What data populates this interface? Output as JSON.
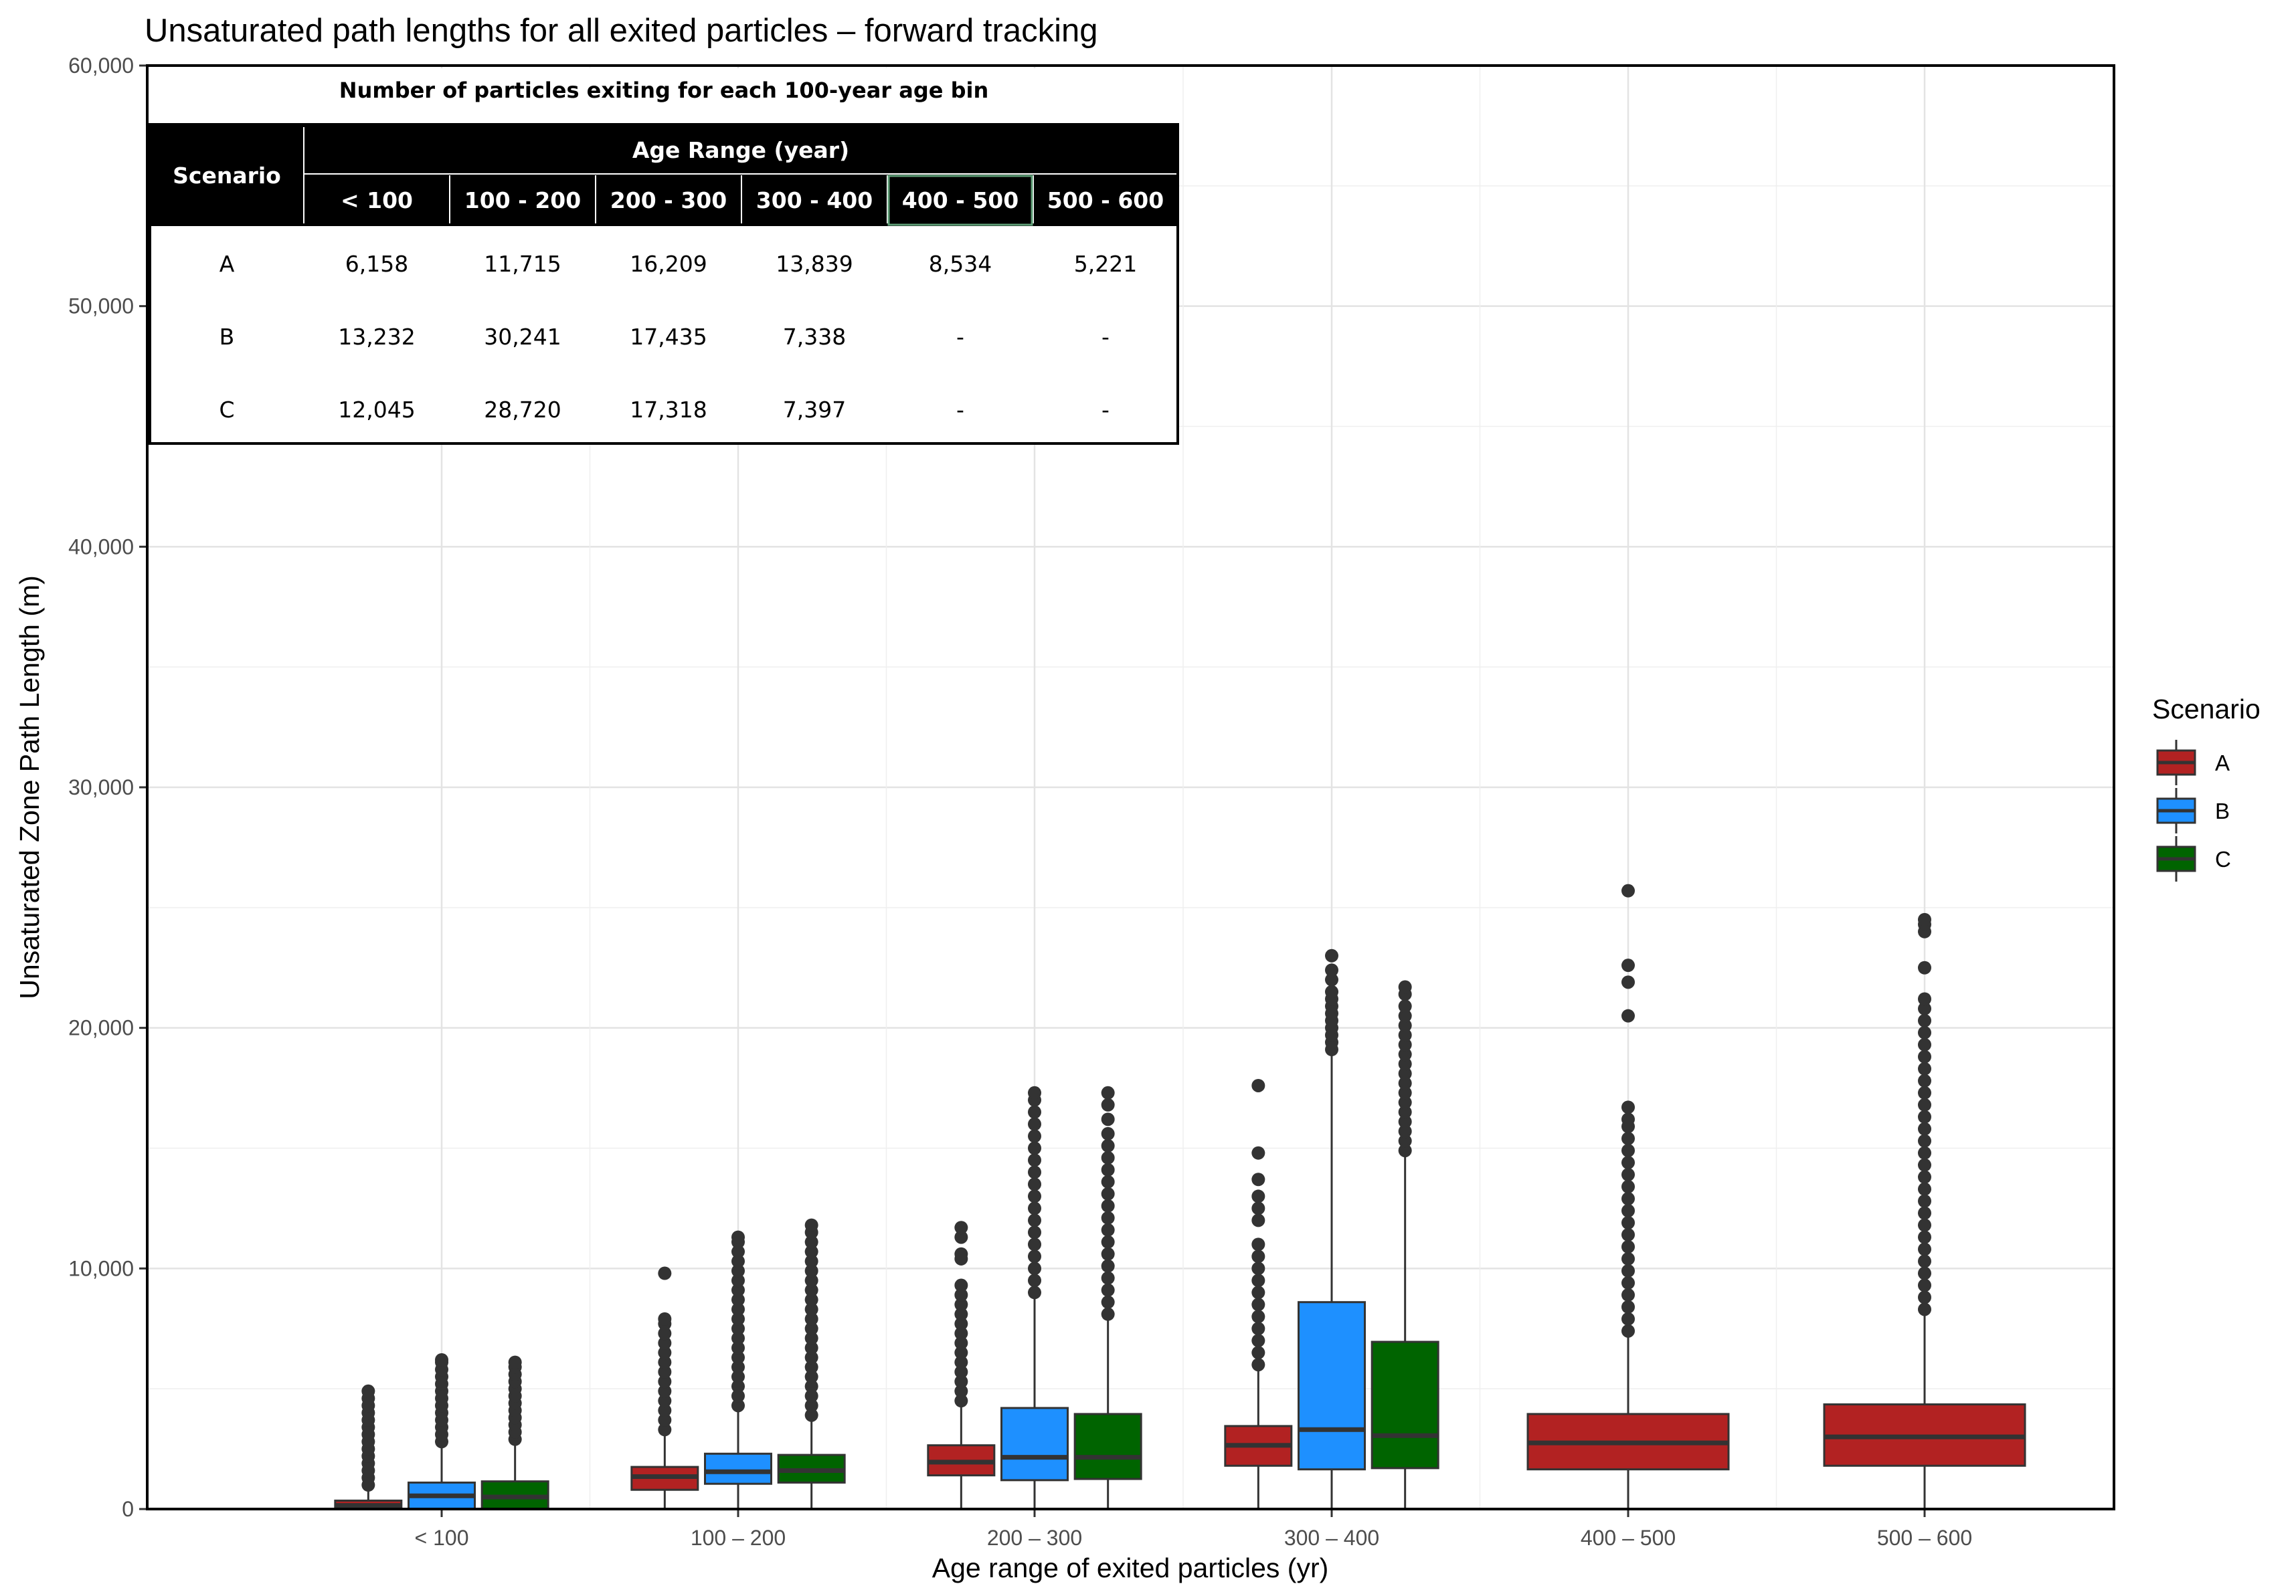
{
  "chart_data": {
    "type": "boxplot",
    "title": "Unsaturated path lengths for all exited particles – forward tracking",
    "xlabel": "Age range of exited particles (yr)",
    "ylabel": "Unsaturated Zone Path Length (m)",
    "ylim": [
      0,
      60000
    ],
    "yticks": [
      0,
      10000,
      20000,
      30000,
      40000,
      50000,
      60000
    ],
    "ytick_labels": [
      "0",
      "10,000",
      "20,000",
      "30,000",
      "40,000",
      "50,000",
      "60,000"
    ],
    "grid": true,
    "categories": [
      "< 100",
      "100 – 200",
      "200 – 300",
      "300 – 400",
      "400 – 500",
      "500 – 600"
    ],
    "legend": {
      "title": "Scenario",
      "placement": "right"
    },
    "series": [
      {
        "name": "A",
        "color": "#b22222",
        "boxes": [
          {
            "category": "< 100",
            "q1": 0,
            "median": 150,
            "q3": 350,
            "whisker_low": 0,
            "whisker_high": 900,
            "outliers": [
              1000,
              1300,
              1600,
              1900,
              2200,
              2500,
              2800,
              3100,
              3400,
              3700,
              4000,
              4300,
              4600,
              4900
            ]
          },
          {
            "category": "100 – 200",
            "q1": 800,
            "median": 1350,
            "q3": 1750,
            "whisker_low": 0,
            "whisker_high": 3200,
            "outliers": [
              3300,
              3700,
              4100,
              4500,
              4900,
              5300,
              5700,
              6100,
              6500,
              6900,
              7300,
              7700,
              7900,
              9800
            ]
          },
          {
            "category": "200 – 300",
            "q1": 1400,
            "median": 1950,
            "q3": 2650,
            "whisker_low": 0,
            "whisker_high": 4400,
            "outliers": [
              4500,
              4900,
              5300,
              5700,
              6100,
              6500,
              6900,
              7300,
              7700,
              8100,
              8500,
              8900,
              9300,
              10400,
              10600,
              11300,
              11700
            ]
          },
          {
            "category": "300 – 400",
            "q1": 1800,
            "median": 2650,
            "q3": 3450,
            "whisker_low": 0,
            "whisker_high": 5900,
            "outliers": [
              6000,
              6500,
              7000,
              7500,
              8000,
              8500,
              9000,
              9500,
              10000,
              10500,
              11000,
              12000,
              12500,
              13000,
              13700,
              14800,
              17600
            ]
          },
          {
            "category": "400 – 500",
            "q1": 1650,
            "median": 2750,
            "q3": 3950,
            "whisker_low": 0,
            "whisker_high": 7300,
            "outliers": [
              7400,
              7900,
              8400,
              8900,
              9400,
              9900,
              10400,
              10900,
              11400,
              11900,
              12400,
              12900,
              13400,
              13900,
              14400,
              14900,
              15400,
              15900,
              16200,
              16700,
              20500,
              21900,
              22600,
              25700
            ]
          },
          {
            "category": "500 – 600",
            "q1": 1800,
            "median": 3000,
            "q3": 4350,
            "whisker_low": 0,
            "whisker_high": 8200,
            "outliers": [
              8300,
              8800,
              9300,
              9800,
              10300,
              10800,
              11300,
              11800,
              12300,
              12800,
              13300,
              13800,
              14300,
              14800,
              15300,
              15800,
              16300,
              16800,
              17300,
              17800,
              18300,
              18800,
              19300,
              19800,
              20300,
              20800,
              21200,
              22500,
              24000,
              24300,
              24500
            ]
          }
        ]
      },
      {
        "name": "B",
        "color": "#1e90ff",
        "boxes": [
          {
            "category": "< 100",
            "q1": 0,
            "median": 550,
            "q3": 1100,
            "whisker_low": 0,
            "whisker_high": 2700,
            "outliers": [
              2800,
              3100,
              3400,
              3700,
              4000,
              4300,
              4600,
              4900,
              5200,
              5500,
              5800,
              6100,
              6200
            ]
          },
          {
            "category": "100 – 200",
            "q1": 1050,
            "median": 1550,
            "q3": 2300,
            "whisker_low": 0,
            "whisker_high": 4200,
            "outliers": [
              4300,
              4700,
              5100,
              5500,
              5900,
              6300,
              6700,
              7100,
              7500,
              7900,
              8300,
              8700,
              9100,
              9500,
              9900,
              10300,
              10700,
              11100,
              11300
            ]
          },
          {
            "category": "200 – 300",
            "q1": 1200,
            "median": 2150,
            "q3": 4200,
            "whisker_low": 0,
            "whisker_high": 8900,
            "outliers": [
              9000,
              9500,
              10000,
              10500,
              11000,
              11500,
              12000,
              12500,
              13000,
              13500,
              14000,
              14500,
              15000,
              15500,
              16000,
              16500,
              17000,
              17300
            ]
          },
          {
            "category": "300 – 400",
            "q1": 1650,
            "median": 3300,
            "q3": 8600,
            "whisker_low": 0,
            "whisker_high": 19000,
            "outliers": [
              19100,
              19400,
              19700,
              20000,
              20300,
              20600,
              20900,
              21200,
              21500,
              22000,
              22400,
              23000
            ]
          }
        ]
      },
      {
        "name": "C",
        "color": "#006400",
        "boxes": [
          {
            "category": "< 100",
            "q1": 0,
            "median": 500,
            "q3": 1150,
            "whisker_low": 0,
            "whisker_high": 2800,
            "outliers": [
              2900,
              3200,
              3500,
              3800,
              4100,
              4400,
              4700,
              5000,
              5300,
              5600,
              5900,
              6100
            ]
          },
          {
            "category": "100 – 200",
            "q1": 1100,
            "median": 1600,
            "q3": 2250,
            "whisker_low": 0,
            "whisker_high": 3800,
            "outliers": [
              3900,
              4300,
              4700,
              5100,
              5500,
              5900,
              6300,
              6700,
              7100,
              7500,
              7900,
              8300,
              8700,
              9100,
              9500,
              9900,
              10300,
              10700,
              11100,
              11500,
              11800
            ]
          },
          {
            "category": "200 – 300",
            "q1": 1250,
            "median": 2150,
            "q3": 3950,
            "whisker_low": 0,
            "whisker_high": 8000,
            "outliers": [
              8100,
              8600,
              9100,
              9600,
              10100,
              10600,
              11100,
              11600,
              12100,
              12600,
              13100,
              13600,
              14100,
              14600,
              15100,
              15600,
              16200,
              16800,
              17300
            ]
          },
          {
            "category": "300 – 400",
            "q1": 1700,
            "median": 3050,
            "q3": 6950,
            "whisker_low": 0,
            "whisker_high": 14800,
            "outliers": [
              14900,
              15300,
              15700,
              16100,
              16500,
              16900,
              17300,
              17700,
              18100,
              18500,
              18900,
              19300,
              19700,
              20100,
              20500,
              20900,
              21400,
              21700
            ]
          }
        ]
      }
    ]
  },
  "table": {
    "caption": "Number of particles exiting for each 100-year age bin",
    "header_scenario": "Scenario",
    "header_group": "Age Range (year)",
    "columns": [
      "< 100",
      "100 - 200",
      "200 - 300",
      "300 - 400",
      "400 - 500",
      "500 - 600"
    ],
    "rows": [
      {
        "scenario": "A",
        "values": [
          "6,158",
          "11,715",
          "16,209",
          "13,839",
          "8,534",
          "5,221"
        ]
      },
      {
        "scenario": "B",
        "values": [
          "13,232",
          "30,241",
          "17,435",
          "7,338",
          "-",
          "-"
        ]
      },
      {
        "scenario": "C",
        "values": [
          "12,045",
          "28,720",
          "17,318",
          "7,397",
          "-",
          "-"
        ]
      }
    ]
  }
}
